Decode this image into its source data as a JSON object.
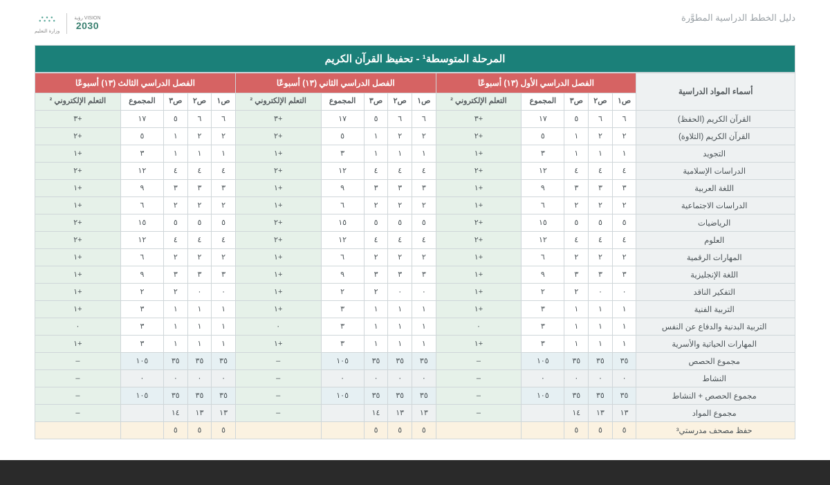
{
  "header": {
    "guide_title": "دليل الخطط الدراسية المطوَّرة",
    "vision_label": "VISION رؤية",
    "vision_year": "2030",
    "moe_label": "وزارة التعليم"
  },
  "banner": "المرحلة المتوسطة¹ - تحفيظ القرآن الكريم",
  "semesters": [
    "الفصل الدراسي الأول (١٣) أسبوعًا",
    "الفصل الدراسي الثاني (١٣) أسبوعًا",
    "الفصل الدراسي الثالث (١٣) أسبوعًا"
  ],
  "col_headers": {
    "subjects": "أسماء المواد الدراسية",
    "g1": "ص١",
    "g2": "ص٢",
    "g3": "ص٣",
    "total": "المجموع",
    "elearn": "التعلم الإلكتروني ²"
  },
  "rows": [
    {
      "subj": "القرآن الكريم (الحفظ)",
      "sem": [
        [
          "٦",
          "٦",
          "٥",
          "١٧",
          "+٣"
        ],
        [
          "٦",
          "٦",
          "٥",
          "١٧",
          "+٣"
        ],
        [
          "٦",
          "٦",
          "٥",
          "١٧",
          "+٣"
        ]
      ]
    },
    {
      "subj": "القرآن الكريم (التلاوة)",
      "sem": [
        [
          "٢",
          "٢",
          "١",
          "٥",
          "+٢"
        ],
        [
          "٢",
          "٢",
          "١",
          "٥",
          "+٢"
        ],
        [
          "٢",
          "٢",
          "١",
          "٥",
          "+٢"
        ]
      ]
    },
    {
      "subj": "التجويد",
      "sem": [
        [
          "١",
          "١",
          "١",
          "٣",
          "+١"
        ],
        [
          "١",
          "١",
          "١",
          "٣",
          "+١"
        ],
        [
          "١",
          "١",
          "١",
          "٣",
          "+١"
        ]
      ]
    },
    {
      "subj": "الدراسات الإسلامية",
      "sem": [
        [
          "٤",
          "٤",
          "٤",
          "١٢",
          "+٢"
        ],
        [
          "٤",
          "٤",
          "٤",
          "١٢",
          "+٢"
        ],
        [
          "٤",
          "٤",
          "٤",
          "١٢",
          "+٢"
        ]
      ]
    },
    {
      "subj": "اللغة العربية",
      "sem": [
        [
          "٣",
          "٣",
          "٣",
          "٩",
          "+١"
        ],
        [
          "٣",
          "٣",
          "٣",
          "٩",
          "+١"
        ],
        [
          "٣",
          "٣",
          "٣",
          "٩",
          "+١"
        ]
      ]
    },
    {
      "subj": "الدراسات الاجتماعية",
      "sem": [
        [
          "٢",
          "٢",
          "٢",
          "٦",
          "+١"
        ],
        [
          "٢",
          "٢",
          "٢",
          "٦",
          "+١"
        ],
        [
          "٢",
          "٢",
          "٢",
          "٦",
          "+١"
        ]
      ]
    },
    {
      "subj": "الرياضيات",
      "sem": [
        [
          "٥",
          "٥",
          "٥",
          "١٥",
          "+٢"
        ],
        [
          "٥",
          "٥",
          "٥",
          "١٥",
          "+٢"
        ],
        [
          "٥",
          "٥",
          "٥",
          "١٥",
          "+٢"
        ]
      ]
    },
    {
      "subj": "العلوم",
      "sem": [
        [
          "٤",
          "٤",
          "٤",
          "١٢",
          "+٢"
        ],
        [
          "٤",
          "٤",
          "٤",
          "١٢",
          "+٢"
        ],
        [
          "٤",
          "٤",
          "٤",
          "١٢",
          "+٢"
        ]
      ]
    },
    {
      "subj": "المهارات الرقمية",
      "sem": [
        [
          "٢",
          "٢",
          "٢",
          "٦",
          "+١"
        ],
        [
          "٢",
          "٢",
          "٢",
          "٦",
          "+١"
        ],
        [
          "٢",
          "٢",
          "٢",
          "٦",
          "+١"
        ]
      ]
    },
    {
      "subj": "اللغة الإنجليزية",
      "sem": [
        [
          "٣",
          "٣",
          "٣",
          "٩",
          "+١"
        ],
        [
          "٣",
          "٣",
          "٣",
          "٩",
          "+١"
        ],
        [
          "٣",
          "٣",
          "٣",
          "٩",
          "+١"
        ]
      ]
    },
    {
      "subj": "التفكير الناقد",
      "sem": [
        [
          "٠",
          "٠",
          "٢",
          "٢",
          "+١"
        ],
        [
          "٠",
          "٠",
          "٢",
          "٢",
          "+١"
        ],
        [
          "٠",
          "٠",
          "٢",
          "٢",
          "+١"
        ]
      ]
    },
    {
      "subj": "التربية الفنية",
      "sem": [
        [
          "١",
          "١",
          "١",
          "٣",
          "+١"
        ],
        [
          "١",
          "١",
          "١",
          "٣",
          "+١"
        ],
        [
          "١",
          "١",
          "١",
          "٣",
          "+١"
        ]
      ]
    },
    {
      "subj": "التربية البدنية والدفاع عن النفس",
      "sem": [
        [
          "١",
          "١",
          "١",
          "٣",
          "٠"
        ],
        [
          "١",
          "١",
          "١",
          "٣",
          "٠"
        ],
        [
          "١",
          "١",
          "١",
          "٣",
          "٠"
        ]
      ]
    },
    {
      "subj": "المهارات الحياتية والأسرية",
      "sem": [
        [
          "١",
          "١",
          "١",
          "٣",
          "+١"
        ],
        [
          "١",
          "١",
          "١",
          "٣",
          "+١"
        ],
        [
          "١",
          "١",
          "١",
          "٣",
          "+١"
        ]
      ]
    }
  ],
  "summary": [
    {
      "cls": "sum-row",
      "subj": "مجموع الحصص",
      "sem": [
        [
          "٣٥",
          "٣٥",
          "٣٥",
          "١٠٥",
          "–"
        ],
        [
          "٣٥",
          "٣٥",
          "٣٥",
          "١٠٥",
          "–"
        ],
        [
          "٣٥",
          "٣٥",
          "٣٥",
          "١٠٥",
          "–"
        ]
      ]
    },
    {
      "cls": "gray-row",
      "subj": "النشاط",
      "sem": [
        [
          "٠",
          "٠",
          "٠",
          "٠",
          "–"
        ],
        [
          "٠",
          "٠",
          "٠",
          "٠",
          "–"
        ],
        [
          "٠",
          "٠",
          "٠",
          "٠",
          "–"
        ]
      ]
    },
    {
      "cls": "sum-row",
      "subj": "مجموع الحصص + النشاط",
      "sem": [
        [
          "٣٥",
          "٣٥",
          "٣٥",
          "١٠٥",
          "–"
        ],
        [
          "٣٥",
          "٣٥",
          "٣٥",
          "١٠٥",
          "–"
        ],
        [
          "٣٥",
          "٣٥",
          "٣٥",
          "١٠٥",
          "–"
        ]
      ]
    },
    {
      "cls": "gray-row",
      "subj": "مجموع المواد",
      "sem": [
        [
          "١٣",
          "١٣",
          "١٤",
          "",
          "–"
        ],
        [
          "١٣",
          "١٣",
          "١٤",
          "",
          "–"
        ],
        [
          "١٣",
          "١٣",
          "١٤",
          "",
          "–"
        ]
      ]
    },
    {
      "cls": "final-row",
      "subj": "حفظ مصحف مدرستي³",
      "sem": [
        [
          "٥",
          "٥",
          "٥",
          "",
          ""
        ],
        [
          "٥",
          "٥",
          "٥",
          "",
          ""
        ],
        [
          "٥",
          "٥",
          "٥",
          "",
          ""
        ]
      ]
    }
  ]
}
